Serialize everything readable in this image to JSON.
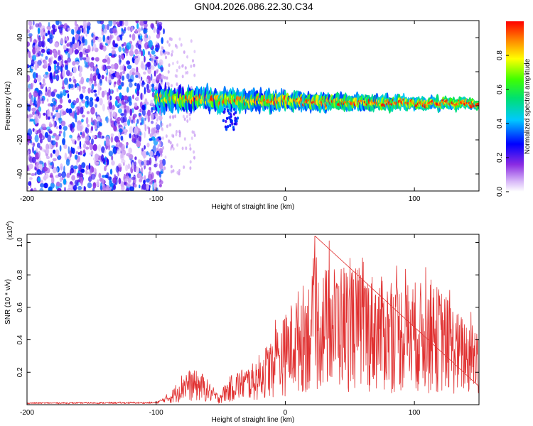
{
  "title": "GN04.2026.086.22.30.C34",
  "chart_data": [
    {
      "type": "heatmap",
      "xlabel": "Height of straight line (km)",
      "ylabel": "Frequency (Hz)",
      "xlim": [
        -200,
        150
      ],
      "ylim": [
        -50,
        50
      ],
      "xticks": [
        -200,
        -100,
        0,
        100
      ],
      "yticks": [
        -40,
        -20,
        0,
        20,
        40
      ],
      "colorbar": {
        "label": "Normalized spectral amplitude",
        "range": [
          0,
          1
        ],
        "ticks": [
          "0.0",
          "0.2",
          "0.4",
          "0.6",
          "0.8"
        ],
        "tick_values": [
          0.0,
          0.2,
          0.4,
          0.6,
          0.8
        ]
      },
      "regions": [
        {
          "name": "noise",
          "x_range": [
            -200,
            -100
          ],
          "freq_range": [
            -50,
            50
          ],
          "amplitude": [
            0.05,
            0.4
          ]
        },
        {
          "name": "signal-band",
          "x_range": [
            -100,
            150
          ],
          "center_freq_start": 4,
          "center_freq_end": 1,
          "half_width_start": 7,
          "half_width_end": 3,
          "peak_amplitude": 0.95
        }
      ]
    },
    {
      "type": "line",
      "xlabel": "Height of straight line (km)",
      "ylabel": "SNR (10 * v/v)",
      "scale_label": "(x10",
      "scale_exp": "4",
      "xlim": [
        -200,
        150
      ],
      "ylim": [
        0,
        1.05
      ],
      "xticks": [
        -200,
        -100,
        0,
        100
      ],
      "yticks": [
        0.2,
        0.4,
        0.6,
        0.8,
        1.0
      ],
      "ytick_labels": [
        "0.2",
        "0.4",
        "0.6",
        "0.8",
        "1.0"
      ],
      "color": "#e03030",
      "envelope": {
        "x": [
          -200,
          -100,
          -88,
          -78,
          -65,
          -52,
          -40,
          -25,
          -10,
          0,
          10,
          20,
          30,
          45,
          60,
          80,
          100,
          120,
          135,
          150
        ],
        "y": [
          0.01,
          0.012,
          0.05,
          0.13,
          0.12,
          0.04,
          0.12,
          0.15,
          0.25,
          0.33,
          0.42,
          0.47,
          0.5,
          0.52,
          0.5,
          0.45,
          0.45,
          0.43,
          0.33,
          0.3
        ]
      },
      "peak": {
        "x": 23,
        "y": 1.04
      }
    }
  ]
}
